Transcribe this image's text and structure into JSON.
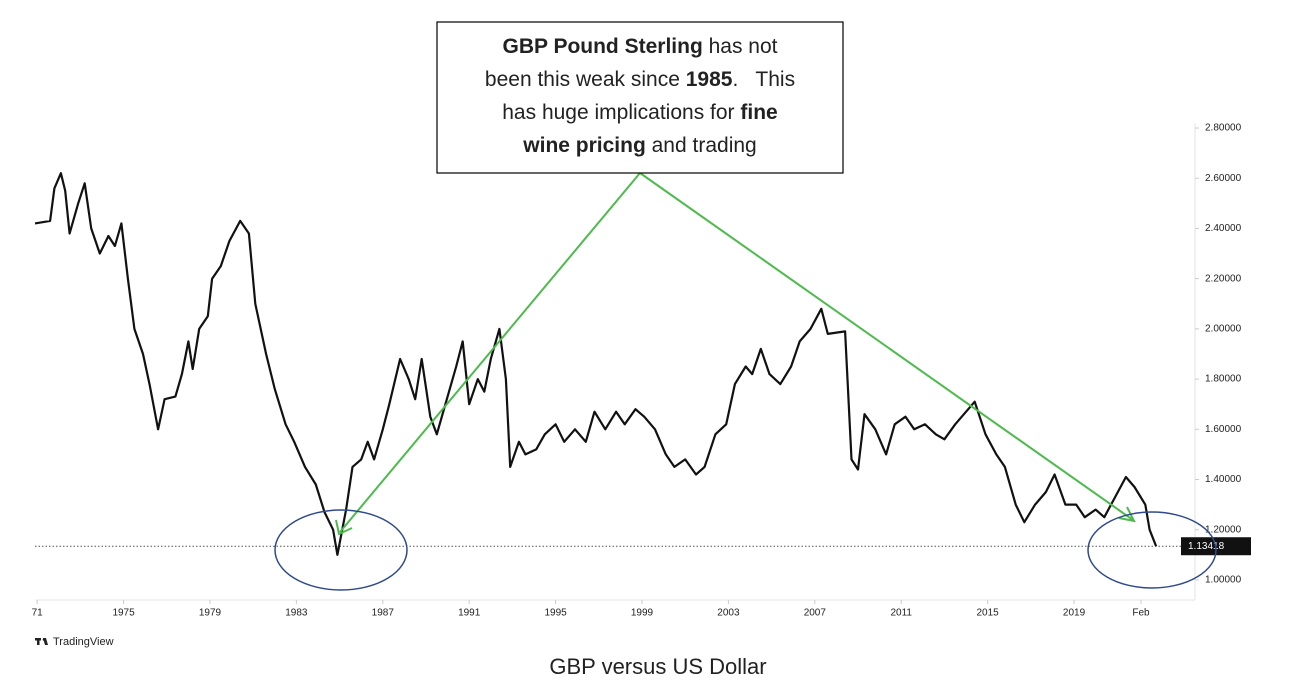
{
  "chart_data": {
    "type": "line",
    "caption": "GBP versus US Dollar",
    "source": "TradingView",
    "annotation": {
      "lines": [
        [
          {
            "text": "GBP Pound Sterling",
            "bold": true
          },
          {
            "text": " has not",
            "bold": false
          }
        ],
        [
          {
            "text": "been this weak since ",
            "bold": false
          },
          {
            "text": "1985",
            "bold": true
          },
          {
            "text": ".   This",
            "bold": false
          }
        ],
        [
          {
            "text": "has huge implications for ",
            "bold": false
          },
          {
            "text": "fine",
            "bold": true
          }
        ],
        [
          {
            "text": "wine pricing",
            "bold": true
          },
          {
            "text": " and trading",
            "bold": false
          }
        ]
      ]
    },
    "x": [
      1970.9,
      1971.6,
      1971.8,
      1972.1,
      1972.3,
      1972.5,
      1972.9,
      1973.2,
      1973.5,
      1973.9,
      1974.3,
      1974.6,
      1974.9,
      1975.2,
      1975.5,
      1975.9,
      1976.2,
      1976.6,
      1976.9,
      1977.4,
      1977.7,
      1978.0,
      1978.2,
      1978.5,
      1978.9,
      1979.1,
      1979.5,
      1979.9,
      1980.4,
      1980.8,
      1981.1,
      1981.6,
      1982.0,
      1982.5,
      1982.9,
      1983.4,
      1983.9,
      1984.3,
      1984.7,
      1984.9,
      1985.3,
      1985.6,
      1986.0,
      1986.3,
      1986.6,
      1987.0,
      1987.3,
      1987.8,
      1988.2,
      1988.5,
      1988.8,
      1989.2,
      1989.5,
      1989.9,
      1990.4,
      1990.7,
      1991.0,
      1991.4,
      1991.7,
      1992.0,
      1992.4,
      1992.7,
      1992.9,
      1993.3,
      1993.6,
      1994.1,
      1994.5,
      1995.0,
      1995.4,
      1995.9,
      1996.4,
      1996.8,
      1997.3,
      1997.8,
      1998.2,
      1998.7,
      1999.1,
      1999.6,
      2000.1,
      2000.5,
      2001.0,
      2001.5,
      2001.9,
      2002.4,
      2002.9,
      2003.3,
      2003.8,
      2004.1,
      2004.5,
      2004.9,
      2005.4,
      2005.9,
      2006.3,
      2006.8,
      2007.3,
      2007.6,
      2008.4,
      2008.7,
      2009.0,
      2009.3,
      2009.8,
      2010.3,
      2010.7,
      2011.2,
      2011.6,
      2012.1,
      2012.6,
      2013.0,
      2013.5,
      2013.9,
      2014.4,
      2014.9,
      2015.4,
      2015.8,
      2016.3,
      2016.7,
      2017.2,
      2017.7,
      2018.1,
      2018.6,
      2019.1,
      2019.5,
      2020.0,
      2020.4,
      2020.9,
      2021.4,
      2021.8,
      2022.3,
      2022.5,
      2022.8
    ],
    "series": [
      {
        "name": "GBPUSD",
        "color": "#111111",
        "values": [
          2.42,
          2.43,
          2.56,
          2.62,
          2.55,
          2.38,
          2.5,
          2.58,
          2.4,
          2.3,
          2.37,
          2.33,
          2.42,
          2.2,
          2.0,
          1.9,
          1.78,
          1.6,
          1.72,
          1.73,
          1.82,
          1.95,
          1.84,
          2.0,
          2.05,
          2.2,
          2.25,
          2.35,
          2.43,
          2.38,
          2.1,
          1.9,
          1.76,
          1.62,
          1.55,
          1.45,
          1.38,
          1.27,
          1.2,
          1.1,
          1.28,
          1.45,
          1.48,
          1.55,
          1.48,
          1.6,
          1.7,
          1.88,
          1.8,
          1.72,
          1.88,
          1.65,
          1.58,
          1.7,
          1.85,
          1.95,
          1.7,
          1.8,
          1.75,
          1.88,
          2.0,
          1.8,
          1.45,
          1.55,
          1.5,
          1.52,
          1.58,
          1.62,
          1.55,
          1.6,
          1.55,
          1.67,
          1.6,
          1.67,
          1.62,
          1.68,
          1.65,
          1.6,
          1.5,
          1.45,
          1.48,
          1.42,
          1.45,
          1.58,
          1.62,
          1.78,
          1.85,
          1.82,
          1.92,
          1.82,
          1.78,
          1.85,
          1.95,
          2.0,
          2.08,
          1.98,
          1.99,
          1.48,
          1.44,
          1.66,
          1.6,
          1.5,
          1.62,
          1.65,
          1.6,
          1.62,
          1.58,
          1.56,
          1.62,
          1.66,
          1.71,
          1.58,
          1.5,
          1.45,
          1.3,
          1.23,
          1.3,
          1.35,
          1.42,
          1.3,
          1.3,
          1.25,
          1.28,
          1.25,
          1.33,
          1.41,
          1.37,
          1.3,
          1.2,
          1.13418
        ]
      }
    ],
    "price_line": {
      "value": 1.13418,
      "label": "1.13418"
    },
    "xlim": [
      1970.9,
      2024.6
    ],
    "xticks": [
      {
        "value": 1971,
        "label": "71"
      },
      1975,
      1979,
      1983,
      1987,
      1991,
      1995,
      1999,
      2003,
      2007,
      2011,
      2015,
      2019,
      {
        "value": 2022.1,
        "label": "Feb"
      }
    ],
    "ylim": [
      0.92,
      2.82
    ],
    "yticks": [
      {
        "value": 1.0,
        "label": "1.00000"
      },
      {
        "value": 1.2,
        "label": "1.20000"
      },
      {
        "value": 1.4,
        "label": "1.40000"
      },
      {
        "value": 1.6,
        "label": "1.60000"
      },
      {
        "value": 1.8,
        "label": "1.80000"
      },
      {
        "value": 2.0,
        "label": "2.00000"
      },
      {
        "value": 2.2,
        "label": "2.20000"
      },
      {
        "value": 2.4,
        "label": "2.40000"
      },
      {
        "value": 2.6,
        "label": "2.60000"
      },
      {
        "value": 2.8,
        "label": "2.80000"
      }
    ]
  }
}
